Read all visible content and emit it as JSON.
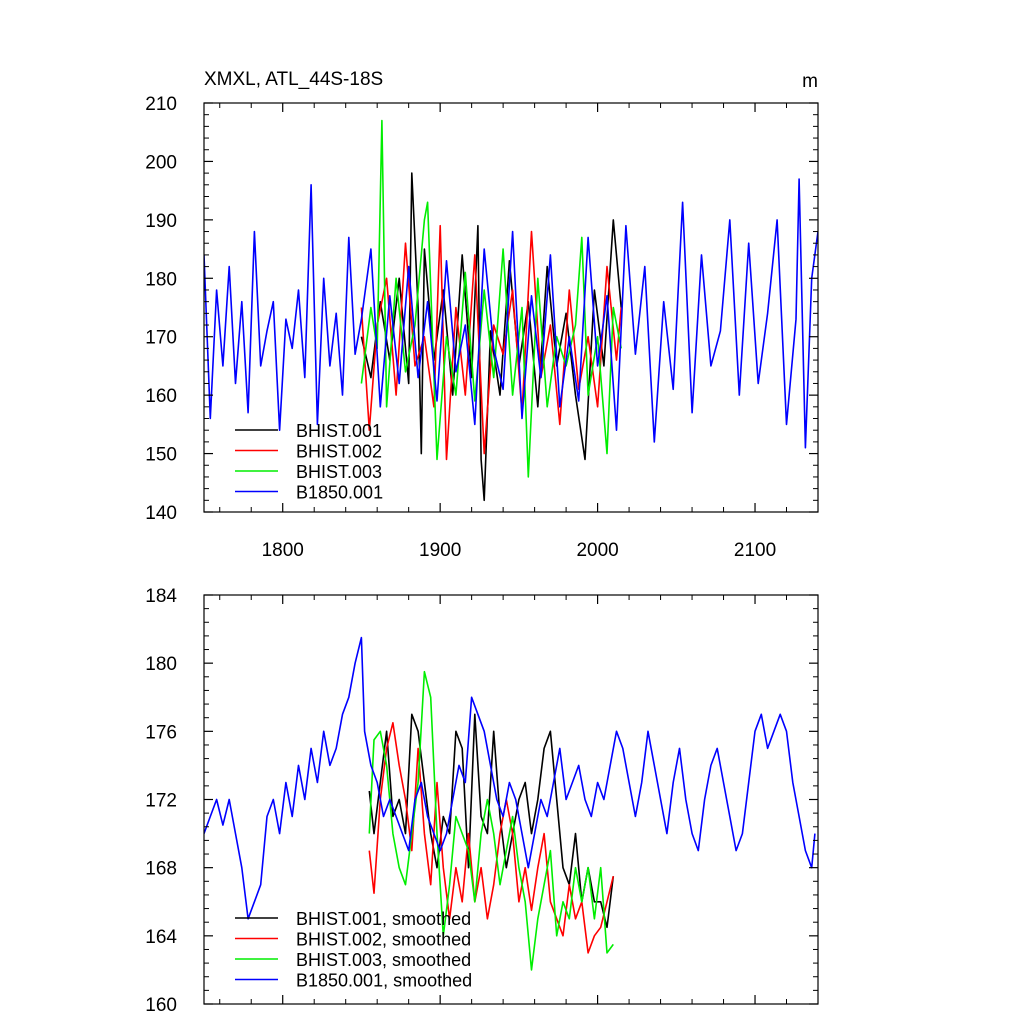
{
  "figure": {
    "title_left": "XMXL, ATL_44S-18S",
    "title_right": "m"
  },
  "chart_data": [
    {
      "type": "line",
      "panel": "top",
      "xlim": [
        1750,
        2140
      ],
      "ylim": [
        140,
        210
      ],
      "xticks": [
        1800,
        1900,
        2000,
        2100
      ],
      "xtick_labels": [
        "1800",
        "1900",
        "2000",
        "2100"
      ],
      "yticks": [
        140,
        150,
        160,
        170,
        180,
        190,
        200,
        210
      ],
      "ytick_labels": [
        "140",
        "150",
        "160",
        "170",
        "180",
        "190",
        "200",
        "210"
      ],
      "legend_position": "bottom-left",
      "series": [
        {
          "name": "BHIST.001",
          "color": "#000000",
          "x": [
            1850,
            1856,
            1862,
            1868,
            1874,
            1880,
            1882,
            1886,
            1888,
            1890,
            1896,
            1902,
            1908,
            1914,
            1920,
            1924,
            1926,
            1928,
            1932,
            1938,
            1944,
            1950,
            1956,
            1962,
            1968,
            1974,
            1980,
            1986,
            1992,
            1998,
            2004,
            2010,
            2015
          ],
          "y": [
            170,
            163,
            176,
            166,
            180,
            162,
            198,
            175,
            150,
            185,
            166,
            178,
            160,
            184,
            163,
            189,
            149,
            142,
            171,
            160,
            183,
            165,
            176,
            158,
            182,
            165,
            174,
            160,
            149,
            178,
            165,
            190,
            175
          ]
        },
        {
          "name": "BHIST.002",
          "color": "#ff0000",
          "x": [
            1850,
            1855,
            1860,
            1866,
            1872,
            1878,
            1884,
            1890,
            1896,
            1900,
            1904,
            1910,
            1916,
            1922,
            1928,
            1934,
            1940,
            1946,
            1952,
            1958,
            1964,
            1970,
            1976,
            1982,
            1988,
            1994,
            2000,
            2006,
            2012,
            2015
          ],
          "y": [
            175,
            154,
            172,
            180,
            160,
            186,
            165,
            170,
            158,
            189,
            149,
            175,
            160,
            184,
            150,
            172,
            167,
            178,
            157,
            188,
            163,
            172,
            155,
            178,
            161,
            170,
            158,
            182,
            166,
            175
          ]
        },
        {
          "name": "BHIST.003",
          "color": "#00ee00",
          "x": [
            1850,
            1856,
            1860,
            1863,
            1866,
            1872,
            1878,
            1884,
            1890,
            1892,
            1898,
            1904,
            1910,
            1916,
            1922,
            1928,
            1934,
            1940,
            1946,
            1952,
            1956,
            1962,
            1968,
            1974,
            1980,
            1986,
            1990,
            1994,
            2000,
            2006,
            2010,
            2015
          ],
          "y": [
            162,
            175,
            168,
            207,
            158,
            180,
            164,
            172,
            190,
            193,
            149,
            170,
            160,
            181,
            159,
            178,
            163,
            185,
            160,
            175,
            146,
            180,
            158,
            170,
            165,
            172,
            187,
            160,
            170,
            150,
            175,
            168
          ]
        },
        {
          "name": "B1850.001",
          "color": "#0000ff",
          "x": [
            1750,
            1754,
            1758,
            1762,
            1766,
            1770,
            1774,
            1778,
            1782,
            1786,
            1790,
            1794,
            1798,
            1802,
            1806,
            1810,
            1814,
            1818,
            1822,
            1826,
            1830,
            1834,
            1838,
            1842,
            1846,
            1850,
            1856,
            1862,
            1868,
            1874,
            1880,
            1886,
            1892,
            1898,
            1904,
            1910,
            1916,
            1922,
            1928,
            1934,
            1940,
            1946,
            1952,
            1958,
            1964,
            1970,
            1976,
            1982,
            1988,
            1994,
            2000,
            2006,
            2012,
            2018,
            2024,
            2030,
            2036,
            2042,
            2048,
            2054,
            2060,
            2066,
            2072,
            2078,
            2084,
            2090,
            2096,
            2102,
            2108,
            2114,
            2120,
            2126,
            2128,
            2132,
            2136,
            2140
          ],
          "y": [
            184,
            156,
            178,
            165,
            182,
            162,
            176,
            157,
            188,
            165,
            171,
            176,
            154,
            173,
            168,
            178,
            163,
            196,
            155,
            180,
            165,
            174,
            160,
            187,
            167,
            173,
            185,
            158,
            177,
            162,
            182,
            163,
            176,
            159,
            183,
            164,
            172,
            155,
            185,
            168,
            161,
            188,
            156,
            177,
            163,
            184,
            158,
            170,
            159,
            187,
            165,
            177,
            154,
            189,
            167,
            182,
            152,
            176,
            161,
            193,
            157,
            184,
            165,
            171,
            190,
            160,
            186,
            162,
            174,
            190,
            155,
            173,
            197,
            151,
            180,
            188
          ]
        }
      ]
    },
    {
      "type": "line",
      "panel": "bottom",
      "xlim": [
        1750,
        2140
      ],
      "ylim": [
        160,
        184
      ],
      "xticks": [
        1800,
        1900,
        2000,
        2100
      ],
      "xtick_labels": [
        "",
        "",
        "",
        ""
      ],
      "yticks": [
        160,
        164,
        168,
        172,
        176,
        180,
        184
      ],
      "ytick_labels": [
        "160",
        "164",
        "168",
        "172",
        "176",
        "180",
        "184"
      ],
      "legend_position": "bottom-left",
      "series": [
        {
          "name": "BHIST.001, smoothed",
          "color": "#000000",
          "x": [
            1855,
            1858,
            1862,
            1866,
            1870,
            1874,
            1878,
            1882,
            1886,
            1890,
            1894,
            1898,
            1902,
            1906,
            1910,
            1914,
            1918,
            1922,
            1926,
            1930,
            1934,
            1938,
            1942,
            1946,
            1950,
            1954,
            1958,
            1962,
            1966,
            1970,
            1974,
            1978,
            1982,
            1986,
            1990,
            1994,
            1998,
            2002,
            2006,
            2010
          ],
          "y": [
            172.5,
            170,
            173,
            176,
            171,
            172,
            170,
            177,
            176,
            173,
            170,
            168,
            171,
            170,
            176,
            175,
            168,
            177,
            171,
            170,
            176,
            171,
            168,
            170,
            172,
            173,
            170,
            172,
            175,
            176,
            172,
            168,
            167,
            170,
            166,
            168,
            166,
            166,
            164.5,
            167.5
          ]
        },
        {
          "name": "BHIST.002, smoothed",
          "color": "#ff0000",
          "x": [
            1855,
            1858,
            1862,
            1866,
            1870,
            1874,
            1878,
            1882,
            1886,
            1890,
            1894,
            1898,
            1902,
            1906,
            1910,
            1914,
            1918,
            1922,
            1926,
            1930,
            1934,
            1938,
            1942,
            1946,
            1950,
            1954,
            1958,
            1962,
            1966,
            1970,
            1974,
            1978,
            1982,
            1986,
            1990,
            1994,
            1998,
            2002,
            2006,
            2010
          ],
          "y": [
            169,
            166.5,
            172,
            175,
            176.5,
            174,
            172,
            169,
            175,
            170,
            167,
            173,
            168,
            165,
            168,
            166,
            170,
            166,
            168,
            165,
            167,
            170,
            172,
            170,
            166,
            168,
            165.5,
            168,
            170,
            166,
            165,
            164,
            167,
            165,
            166,
            163,
            164,
            164.5,
            166,
            167.5
          ]
        },
        {
          "name": "BHIST.003, smoothed",
          "color": "#00ee00",
          "x": [
            1855,
            1858,
            1862,
            1866,
            1870,
            1874,
            1878,
            1882,
            1886,
            1890,
            1894,
            1898,
            1902,
            1906,
            1910,
            1914,
            1918,
            1922,
            1926,
            1930,
            1934,
            1938,
            1942,
            1946,
            1950,
            1954,
            1958,
            1962,
            1966,
            1970,
            1974,
            1978,
            1982,
            1986,
            1990,
            1994,
            1998,
            2002,
            2006,
            2010
          ],
          "y": [
            170,
            175.5,
            176,
            174,
            170,
            168,
            167,
            170,
            173,
            179.5,
            178,
            170,
            164,
            167,
            171,
            170,
            169,
            166,
            170,
            172,
            170,
            167,
            169,
            171,
            168,
            166,
            162,
            165,
            167,
            169,
            164,
            166,
            165,
            168,
            166,
            168,
            165,
            168,
            163,
            163.5
          ]
        },
        {
          "name": "B1850.001, smoothed",
          "color": "#0000ff",
          "x": [
            1750,
            1754,
            1758,
            1762,
            1766,
            1770,
            1774,
            1778,
            1782,
            1786,
            1790,
            1794,
            1798,
            1802,
            1806,
            1810,
            1814,
            1818,
            1822,
            1826,
            1830,
            1834,
            1838,
            1842,
            1846,
            1850,
            1852,
            1856,
            1860,
            1864,
            1868,
            1872,
            1876,
            1880,
            1884,
            1888,
            1892,
            1896,
            1900,
            1904,
            1908,
            1912,
            1916,
            1920,
            1924,
            1928,
            1932,
            1936,
            1940,
            1944,
            1948,
            1952,
            1956,
            1960,
            1964,
            1968,
            1972,
            1976,
            1980,
            1984,
            1988,
            1992,
            1996,
            2000,
            2004,
            2008,
            2012,
            2016,
            2020,
            2024,
            2028,
            2032,
            2036,
            2040,
            2044,
            2048,
            2052,
            2056,
            2060,
            2064,
            2068,
            2072,
            2076,
            2080,
            2084,
            2088,
            2092,
            2096,
            2100,
            2104,
            2108,
            2112,
            2116,
            2120,
            2124,
            2128,
            2132,
            2136,
            2138
          ],
          "y": [
            170,
            171,
            172,
            170.5,
            172,
            170,
            168,
            165,
            166,
            167,
            171,
            172,
            170,
            173,
            171,
            174,
            172,
            175,
            173,
            176,
            174,
            175,
            177,
            178,
            180,
            181.5,
            176,
            174,
            173,
            171,
            172,
            171,
            170,
            169,
            172,
            173,
            171,
            170,
            169,
            170,
            172,
            174,
            173,
            178,
            177,
            176,
            174,
            172,
            171,
            173,
            172,
            170,
            168,
            170,
            172,
            171,
            173,
            175,
            172,
            173,
            174,
            172,
            171,
            173,
            172,
            174,
            176,
            175,
            173,
            171,
            173,
            176,
            174,
            172,
            170,
            173,
            175,
            172,
            170,
            169,
            172,
            174,
            175,
            173,
            171,
            169,
            170,
            173,
            176,
            177,
            175,
            176,
            177,
            176,
            173,
            171,
            169,
            168,
            170
          ]
        }
      ]
    }
  ]
}
